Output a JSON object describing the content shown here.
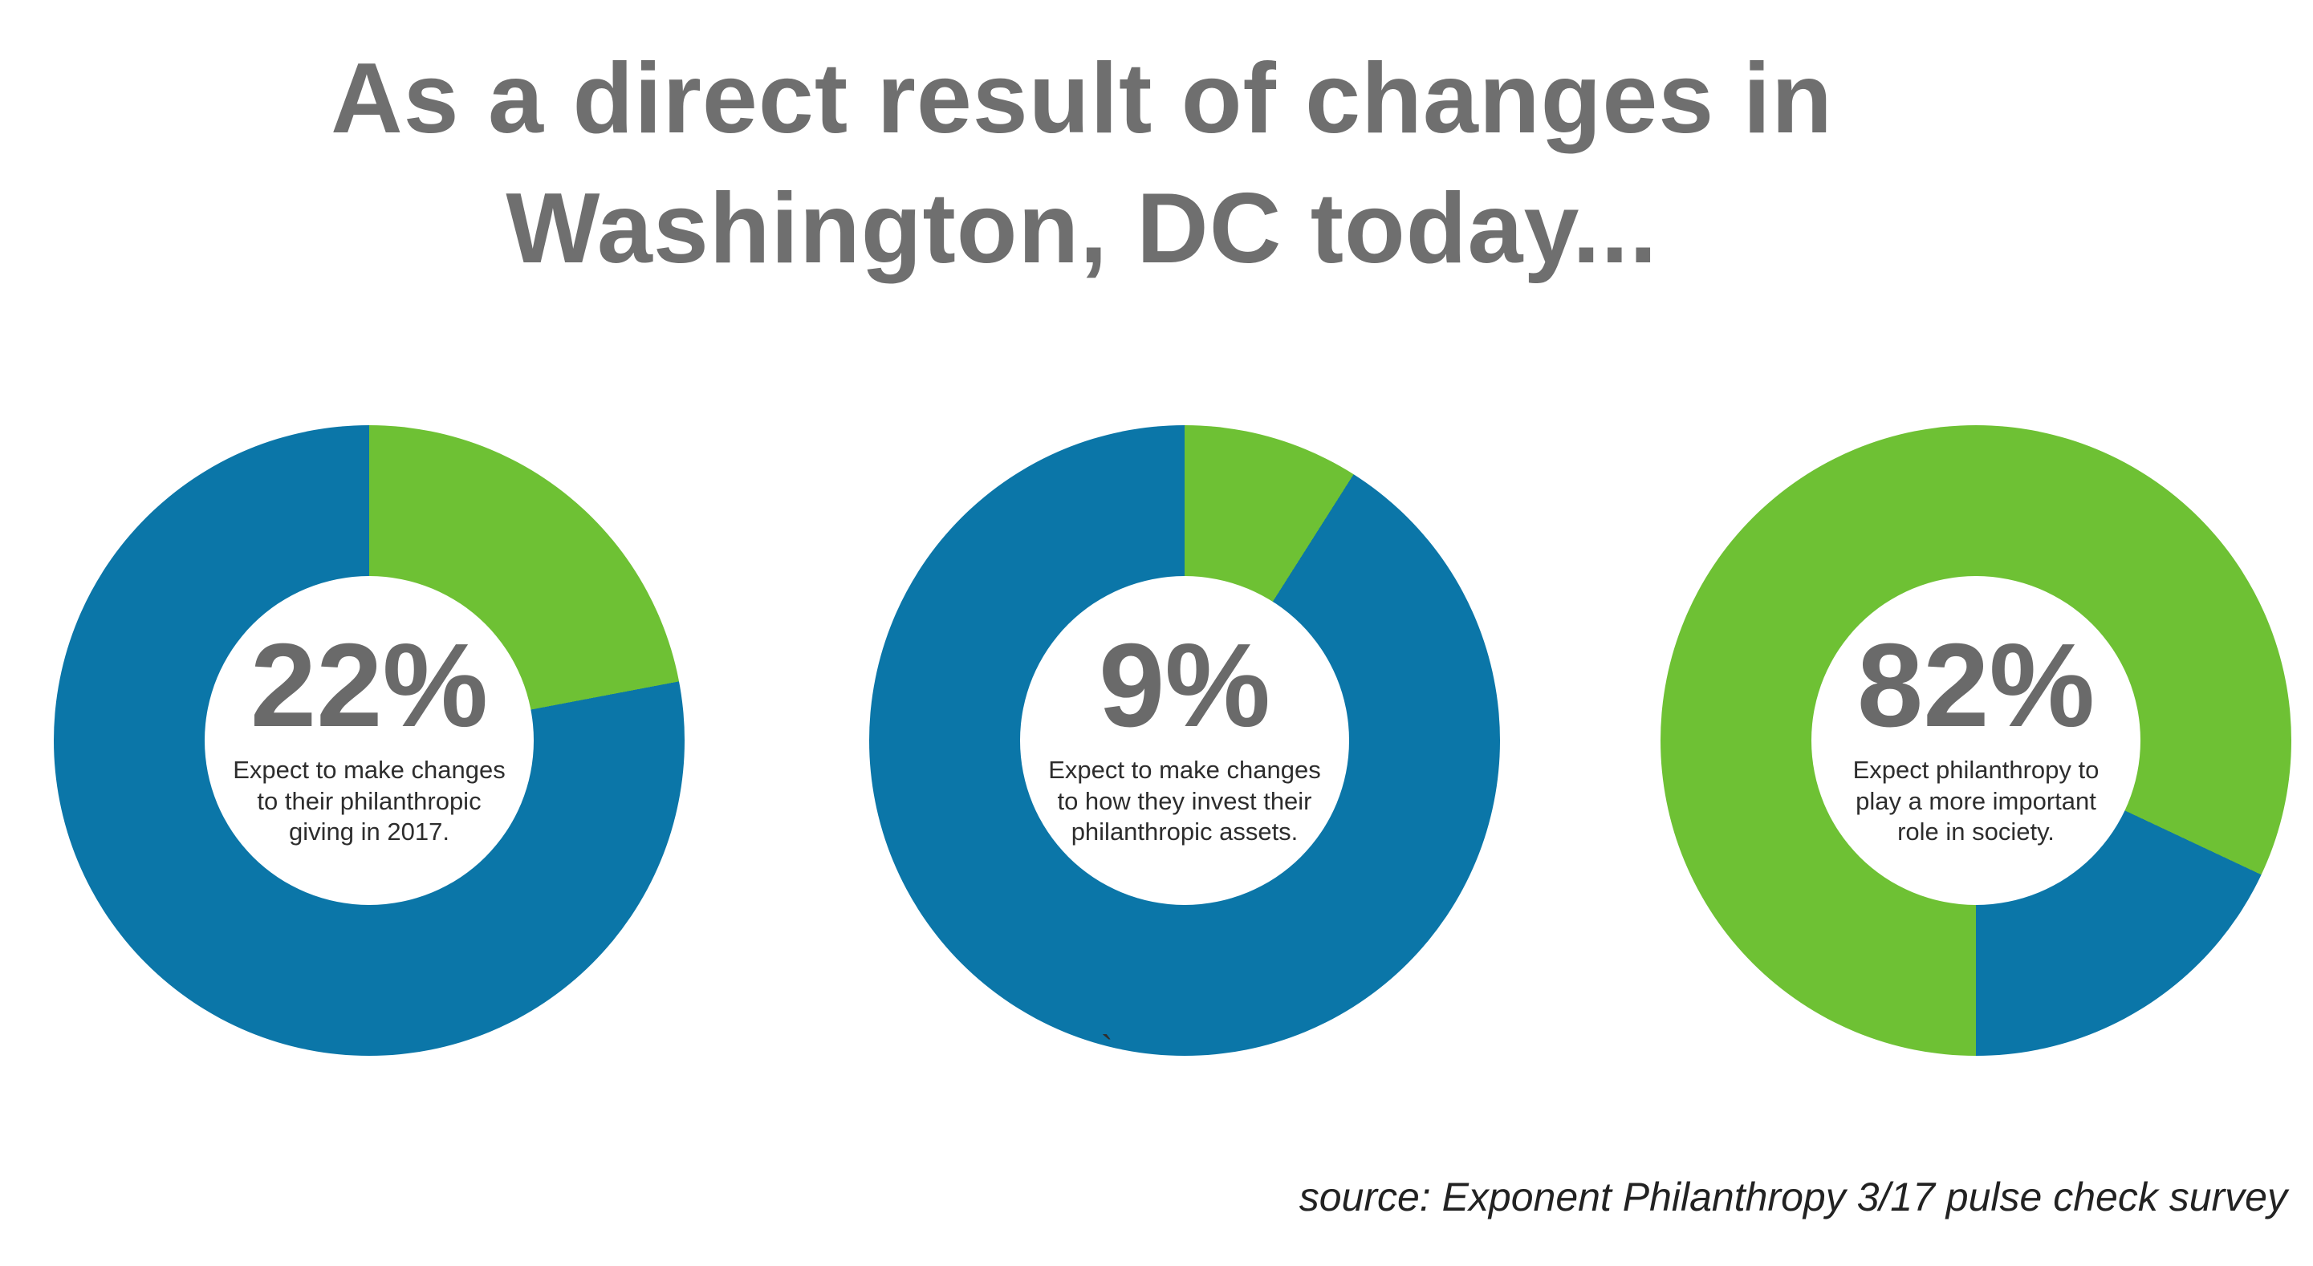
{
  "title": {
    "line1": "As a direct result of changes in",
    "line2": "Washington, DC today..."
  },
  "palette": {
    "green": "#6ec134",
    "blue": "#0b76a8",
    "title_gray": "#6f6f6f",
    "value_gray": "#6a6a6a",
    "caption_dark": "#2d2d2d",
    "background": "#ffffff"
  },
  "chart_data": [
    {
      "type": "pie",
      "subtype": "donut",
      "center_label": "22%",
      "value_pct": 22,
      "caption": "Expect to make changes to their philanthropic giving in 2017.",
      "caption_lines": [
        "Expect to make changes",
        "to their philanthropic",
        "giving in 2017."
      ],
      "start_angle_deg": 0,
      "direction": "clockwise",
      "slices": [
        {
          "name": "expect to make changes",
          "value": 22,
          "color": "green"
        },
        {
          "name": "remainder",
          "value": 78,
          "color": "blue"
        }
      ],
      "segments": [
        {
          "color": "green",
          "from": 0,
          "to": 22
        },
        {
          "color": "blue",
          "from": 22,
          "to": 100
        }
      ]
    },
    {
      "type": "pie",
      "subtype": "donut",
      "center_label": "9%",
      "value_pct": 9,
      "caption": "Expect to make changes to how they invest their philanthropic assets.",
      "caption_lines": [
        "Expect to make changes",
        "to how they invest their",
        "philanthropic assets."
      ],
      "start_angle_deg": 0,
      "direction": "clockwise",
      "slices": [
        {
          "name": "expect to make changes",
          "value": 9,
          "color": "green"
        },
        {
          "name": "remainder",
          "value": 91,
          "color": "blue"
        }
      ],
      "segments": [
        {
          "color": "green",
          "from": 0,
          "to": 9
        },
        {
          "color": "blue",
          "from": 9,
          "to": 100
        }
      ]
    },
    {
      "type": "pie",
      "subtype": "donut",
      "center_label": "82%",
      "value_pct": 82,
      "caption": "Expect philanthropy to play a more important role in society.",
      "caption_lines": [
        "Expect philanthropy to",
        "play a more important",
        "role in society."
      ],
      "start_angle_deg": 0,
      "direction": "clockwise",
      "slices": [
        {
          "name": "expect philanthropy more important",
          "value": 82,
          "color": "green"
        },
        {
          "name": "remainder",
          "value": 18,
          "color": "blue"
        }
      ],
      "segments": [
        {
          "color": "green",
          "from": 0,
          "to": 32
        },
        {
          "color": "blue",
          "from": 32,
          "to": 50
        },
        {
          "color": "green",
          "from": 50,
          "to": 100
        }
      ]
    }
  ],
  "footer": {
    "source": "source: Exponent Philanthropy 3/17 pulse check survey"
  },
  "stray_mark": "`"
}
